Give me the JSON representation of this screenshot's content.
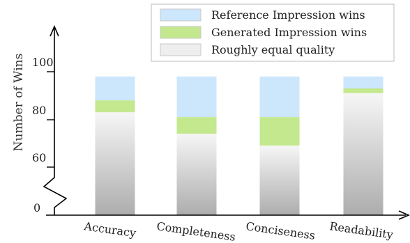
{
  "chart_data": {
    "type": "bar",
    "stacked": true,
    "broken_y_axis": true,
    "categories": [
      "Accuracy",
      "Completeness",
      "Conciseness",
      "Readability"
    ],
    "series": [
      {
        "name": "Roughly equal quality",
        "values": [
          83,
          74,
          69,
          91
        ],
        "color": "#cfcfcf"
      },
      {
        "name": "Generated Impression wins",
        "values": [
          5,
          7,
          12,
          2
        ],
        "color": "#c4e88e"
      },
      {
        "name": "Reference Impression wins",
        "values": [
          10,
          17,
          17,
          5
        ],
        "color": "#cce6fc"
      }
    ],
    "yticks": [
      "0",
      "60",
      "80",
      "100"
    ],
    "ylabel": "Number of Wins",
    "xlabel": "",
    "legend_position": "top-right",
    "grid": false
  }
}
